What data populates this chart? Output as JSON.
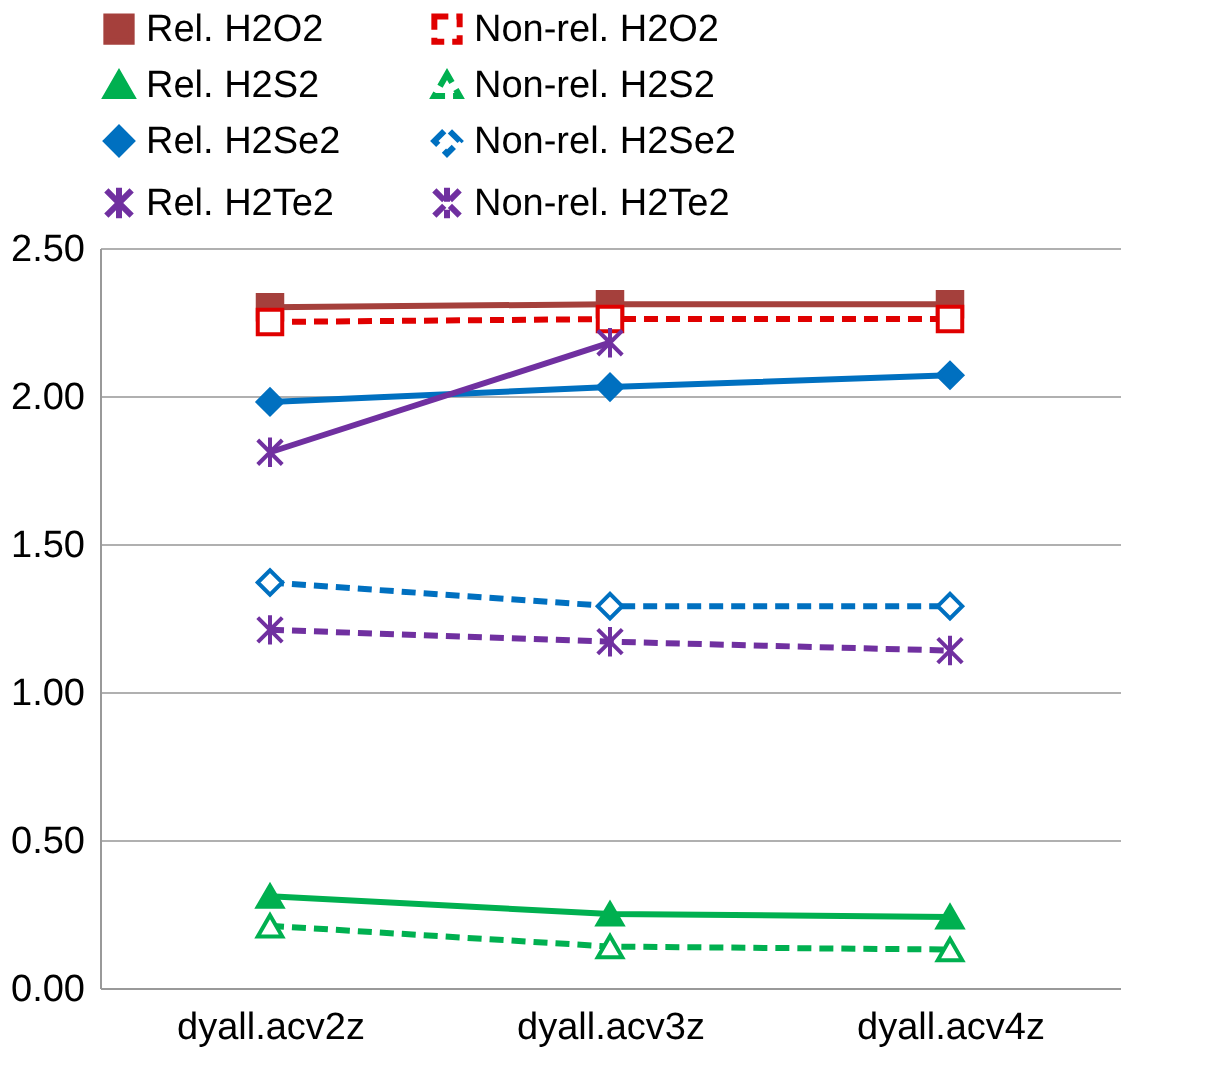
{
  "chart_data": {
    "type": "line",
    "categories": [
      "dyall.acv2z",
      "dyall.acv3z",
      "dyall.acv4z"
    ],
    "series": [
      {
        "name": "Rel. H2O2",
        "color": "#a5403c",
        "marker": "square",
        "line_style": "solid",
        "values": [
          2.3,
          2.31,
          2.31
        ]
      },
      {
        "name": "Non-rel. H2O2",
        "color": "#e00000",
        "marker": "square",
        "line_style": "dashed",
        "values": [
          2.25,
          2.26,
          2.26
        ]
      },
      {
        "name": "Rel. H2S2",
        "color": "#00b050",
        "marker": "triangle",
        "line_style": "solid",
        "values": [
          0.31,
          0.25,
          0.24
        ]
      },
      {
        "name": "Non-rel. H2S2",
        "color": "#00b050",
        "marker": "triangle",
        "line_style": "dashed",
        "values": [
          0.21,
          0.14,
          0.13
        ]
      },
      {
        "name": "Rel. H2Se2",
        "color": "#0070c0",
        "marker": "diamond",
        "line_style": "solid",
        "values": [
          1.98,
          2.03,
          2.07
        ]
      },
      {
        "name": "Non-rel. H2Se2",
        "color": "#0070c0",
        "marker": "diamond",
        "line_style": "dashed",
        "values": [
          1.37,
          1.29,
          1.29
        ]
      },
      {
        "name": "Rel. H2Te2",
        "color": "#7030a0",
        "marker": "cross",
        "line_style": "solid",
        "values": [
          1.81,
          2.18,
          null
        ]
      },
      {
        "name": "Non-rel. H2Te2",
        "color": "#7030a0",
        "marker": "cross",
        "line_style": "dashed",
        "values": [
          1.21,
          1.17,
          1.14
        ]
      }
    ],
    "ylim": [
      0,
      2.5
    ],
    "yticks": [
      {
        "value": 0,
        "label": "0.00"
      },
      {
        "value": 0.5,
        "label": "0.50"
      },
      {
        "value": 1,
        "label": "1.00"
      },
      {
        "value": 1.5,
        "label": "1.50"
      },
      {
        "value": 2,
        "label": "2.00"
      },
      {
        "value": 2.5,
        "label": "2.50"
      }
    ],
    "grid": "y",
    "legend": "top"
  }
}
